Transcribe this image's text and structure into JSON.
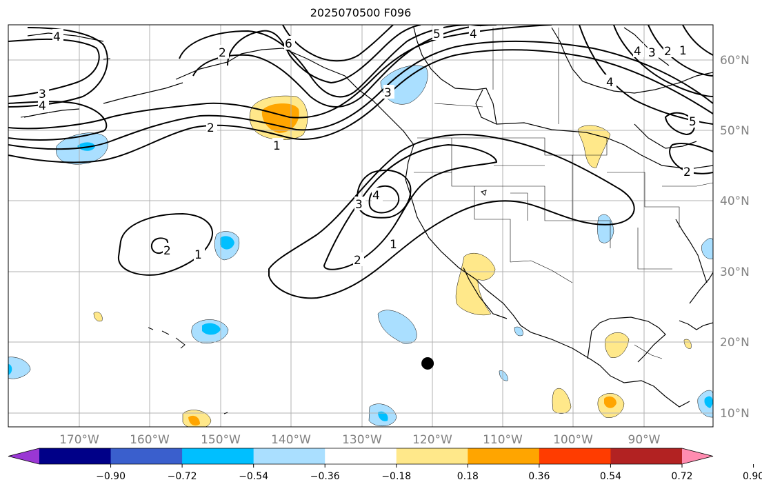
{
  "title": "2025070500 F096",
  "map": {
    "projection": "equirectangular",
    "lon_range": [
      -180,
      -80
    ],
    "lat_range": [
      8,
      65
    ],
    "lon_ticks": [
      {
        "value": -170,
        "label": "170°W"
      },
      {
        "value": -160,
        "label": "160°W"
      },
      {
        "value": -150,
        "label": "150°W"
      },
      {
        "value": -140,
        "label": "140°W"
      },
      {
        "value": -130,
        "label": "130°W"
      },
      {
        "value": -120,
        "label": "120°W"
      },
      {
        "value": -110,
        "label": "110°W"
      },
      {
        "value": -100,
        "label": "100°W"
      },
      {
        "value": -90,
        "label": "90°W"
      }
    ],
    "lat_ticks": [
      {
        "value": 10,
        "label": "10°N"
      },
      {
        "value": 20,
        "label": "20°N"
      },
      {
        "value": 30,
        "label": "30°N"
      },
      {
        "value": 40,
        "label": "40°N"
      },
      {
        "value": 50,
        "label": "50°N"
      },
      {
        "value": 60,
        "label": "60°N"
      }
    ],
    "grid": true,
    "marker": {
      "lon": -120.5,
      "lat": 17,
      "color": "#000000"
    }
  },
  "contour_labels": [
    "1",
    "2",
    "3",
    "4",
    "5",
    "6"
  ],
  "colorbar": {
    "ticks": [
      "−0.90",
      "−0.72",
      "−0.54",
      "−0.36",
      "−0.18",
      "0.18",
      "0.36",
      "0.54",
      "0.72",
      "0.90"
    ],
    "colors": [
      "#9a37d4",
      "#000088",
      "#3a5fcd",
      "#00bfff",
      "#aadfff",
      "#ffffff",
      "#ffe88a",
      "#ffa500",
      "#ff3c00",
      "#b22222",
      "#ff8cb0"
    ],
    "extend": "both"
  },
  "colors": {
    "grid": "#b0b0b0",
    "coast": "#000000",
    "contour": "#000000"
  }
}
